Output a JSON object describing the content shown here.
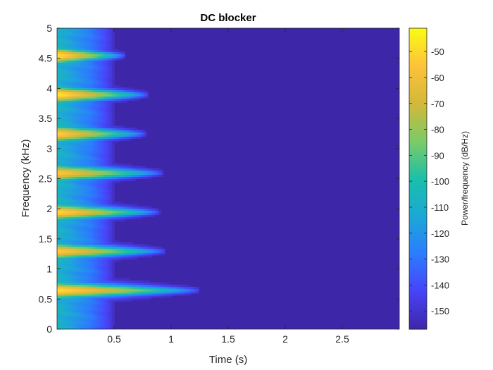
{
  "chart_data": {
    "type": "heatmap",
    "title": "DC blocker",
    "xlabel": "Time (s)",
    "ylabel": "Frequency (kHz)",
    "colorbar_label": "Power/frequency (dB/Hz)",
    "xlim": [
      0,
      3
    ],
    "ylim": [
      0,
      5
    ],
    "clim": [
      -157,
      -41
    ],
    "xticks": [
      {
        "value": 0.5,
        "label": "0.5"
      },
      {
        "value": 1,
        "label": "1"
      },
      {
        "value": 1.5,
        "label": "1.5"
      },
      {
        "value": 2,
        "label": "2"
      },
      {
        "value": 2.5,
        "label": "2.5"
      }
    ],
    "yticks": [
      {
        "value": 0,
        "label": "0"
      },
      {
        "value": 0.5,
        "label": "0.5"
      },
      {
        "value": 1,
        "label": "1"
      },
      {
        "value": 1.5,
        "label": "1.5"
      },
      {
        "value": 2,
        "label": "2"
      },
      {
        "value": 2.5,
        "label": "2.5"
      },
      {
        "value": 3,
        "label": "3"
      },
      {
        "value": 3.5,
        "label": "3.5"
      },
      {
        "value": 4,
        "label": "4"
      },
      {
        "value": 4.5,
        "label": "4.5"
      },
      {
        "value": 5,
        "label": "5"
      }
    ],
    "cticks": [
      {
        "value": -50,
        "label": "-50"
      },
      {
        "value": -60,
        "label": "-60"
      },
      {
        "value": -70,
        "label": "-70"
      },
      {
        "value": -80,
        "label": "-80"
      },
      {
        "value": -90,
        "label": "-90"
      },
      {
        "value": -100,
        "label": "-100"
      },
      {
        "value": -110,
        "label": "-110"
      },
      {
        "value": -120,
        "label": "-120"
      },
      {
        "value": -130,
        "label": "-130"
      },
      {
        "value": -140,
        "label": "-140"
      },
      {
        "value": -150,
        "label": "-150"
      }
    ],
    "colormap": "parula",
    "colormap_stops": [
      "#3e26a8",
      "#4743f8",
      "#2c7cfe",
      "#1ca7d7",
      "#1bbfaa",
      "#7bcb67",
      "#d3b83a",
      "#fcc23a",
      "#f9fb15"
    ],
    "background_level": -154,
    "energy_bands": [
      {
        "frequency": 0.65,
        "peak": -46,
        "decay_end_time": 1.25
      },
      {
        "frequency": 1.3,
        "peak": -52,
        "decay_end_time": 0.95
      },
      {
        "frequency": 1.95,
        "peak": -48,
        "decay_end_time": 0.9
      },
      {
        "frequency": 2.6,
        "peak": -53,
        "decay_end_time": 0.93
      },
      {
        "frequency": 3.25,
        "peak": -50,
        "decay_end_time": 0.78
      },
      {
        "frequency": 3.9,
        "peak": -44,
        "decay_end_time": 0.8
      },
      {
        "frequency": 4.55,
        "peak": -45,
        "decay_end_time": 0.6
      }
    ]
  }
}
